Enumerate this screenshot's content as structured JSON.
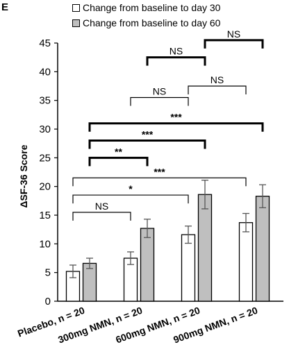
{
  "panel_letter": "E",
  "chart_data": {
    "type": "bar",
    "ylabel": "ΔSF-36 Score",
    "ylim": [
      0,
      45
    ],
    "yticks": [
      0,
      5,
      10,
      15,
      20,
      25,
      30,
      35,
      40,
      45
    ],
    "categories": [
      "Placebo, n = 20",
      "300mg NMN, n = 20",
      "600mg NMN, n = 20",
      "900mg NMN, n = 20"
    ],
    "series": [
      {
        "name": "Change from baseline to day 30",
        "color": "#ffffff",
        "values": [
          5.2,
          7.5,
          11.6,
          13.7
        ],
        "errors": [
          1.1,
          1.1,
          1.5,
          1.6
        ]
      },
      {
        "name": "Change from baseline to day 60",
        "color": "#bfbfbf",
        "values": [
          6.6,
          12.7,
          18.6,
          18.3
        ],
        "errors": [
          0.9,
          1.6,
          2.5,
          2.0
        ]
      }
    ],
    "legend_position": "top",
    "grid": false,
    "annotations": [
      {
        "label": "NS",
        "from": 0,
        "to": 1,
        "series_from": 0,
        "series_to": 0,
        "y": 15.5,
        "bold": false
      },
      {
        "label": "*",
        "from": 0,
        "to": 2,
        "series_from": 0,
        "series_to": 0,
        "y": 18.5,
        "bold": false
      },
      {
        "label": "***",
        "from": 0,
        "to": 3,
        "series_from": 0,
        "series_to": 0,
        "y": 21.5,
        "bold": false
      },
      {
        "label": "**",
        "from": 0,
        "to": 1,
        "series_from": 1,
        "series_to": 1,
        "y": 25.0,
        "bold": true
      },
      {
        "label": "***",
        "from": 0,
        "to": 2,
        "series_from": 1,
        "series_to": 1,
        "y": 28.0,
        "bold": true
      },
      {
        "label": "***",
        "from": 0,
        "to": 3,
        "series_from": 1,
        "series_to": 1,
        "y": 31.0,
        "bold": true
      },
      {
        "label": "NS",
        "from": 1,
        "to": 2,
        "series_from": 0,
        "series_to": 0,
        "y": 35.5,
        "bold": false
      },
      {
        "label": "NS",
        "from": 2,
        "to": 3,
        "series_from": 0,
        "series_to": 0,
        "y": 37.5,
        "bold": false
      },
      {
        "label": "NS",
        "from": 1,
        "to": 2,
        "series_from": 1,
        "series_to": 1,
        "y": 42.5,
        "bold": true
      },
      {
        "label": "NS",
        "from": 2,
        "to": 3,
        "series_from": 1,
        "series_to": 1,
        "y": 45.5,
        "bold": true
      }
    ]
  }
}
